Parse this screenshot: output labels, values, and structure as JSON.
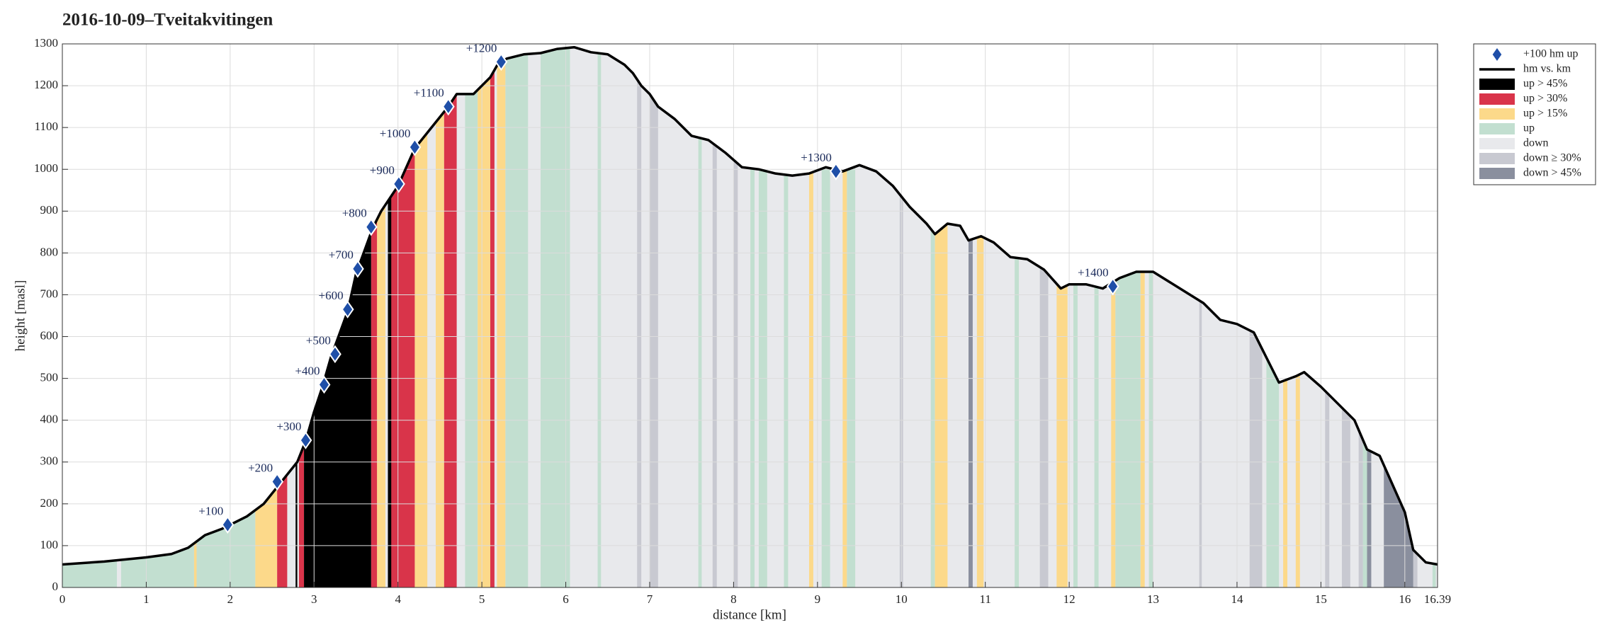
{
  "chart_data": {
    "type": "area",
    "title": "2016-10-09–Tveitakvitingen",
    "xlabel": "distance [km]",
    "ylabel": "height [masl]",
    "xlim": [
      0,
      16.39
    ],
    "ylim": [
      0,
      1300
    ],
    "xticks": [
      0,
      1,
      2,
      3,
      4,
      5,
      6,
      7,
      8,
      9,
      10,
      11,
      12,
      13,
      14,
      15,
      16,
      16.39
    ],
    "yticks": [
      0,
      100,
      200,
      300,
      400,
      500,
      600,
      700,
      800,
      900,
      1000,
      1100,
      1200,
      1300
    ],
    "grid": true,
    "legend": "right",
    "series": [
      {
        "name": "+100 hm up",
        "color": "#1f4fa8",
        "marker": "diamond",
        "x": [
          1.97,
          2.56,
          2.9,
          3.12,
          3.25,
          3.4,
          3.52,
          3.68,
          4.01,
          4.2,
          4.6,
          5.23,
          9.22,
          12.52
        ],
        "values": [
          150,
          253,
          352,
          485,
          558,
          665,
          762,
          862,
          965,
          1053,
          1150,
          1257,
          995,
          720
        ],
        "labels": [
          "+100",
          "+200",
          "+300",
          "+400",
          "+500",
          "+600",
          "+700",
          "+800",
          "+900",
          "+1000",
          "+1100",
          "+1200",
          "+1300",
          "+1400"
        ]
      },
      {
        "name": "hm vs. km",
        "color": "#000000",
        "x": [
          0,
          0.5,
          1,
          1.3,
          1.5,
          1.7,
          1.9,
          2.0,
          2.2,
          2.4,
          2.6,
          2.8,
          2.9,
          3.0,
          3.1,
          3.2,
          3.4,
          3.5,
          3.7,
          3.8,
          3.9,
          4.0,
          4.2,
          4.4,
          4.6,
          4.7,
          4.9,
          5.1,
          5.2,
          5.3,
          5.5,
          5.7,
          5.9,
          6.1,
          6.3,
          6.5,
          6.7,
          6.8,
          6.9,
          7.0,
          7.1,
          7.3,
          7.5,
          7.7,
          7.9,
          8.1,
          8.3,
          8.5,
          8.7,
          8.9,
          9.1,
          9.3,
          9.5,
          9.7,
          9.9,
          10.1,
          10.3,
          10.4,
          10.55,
          10.7,
          10.8,
          10.95,
          11.1,
          11.3,
          11.5,
          11.7,
          11.9,
          12.0,
          12.2,
          12.4,
          12.6,
          12.8,
          13.0,
          13.2,
          13.4,
          13.6,
          13.8,
          14.0,
          14.2,
          14.4,
          14.5,
          14.7,
          14.8,
          15.0,
          15.2,
          15.4,
          15.55,
          15.7,
          15.8,
          16.0,
          16.1,
          16.25,
          16.39
        ],
        "values": [
          55,
          62,
          72,
          80,
          95,
          125,
          140,
          150,
          170,
          200,
          250,
          300,
          350,
          420,
          480,
          550,
          660,
          750,
          860,
          900,
          930,
          960,
          1050,
          1100,
          1150,
          1180,
          1180,
          1220,
          1255,
          1265,
          1275,
          1278,
          1288,
          1292,
          1280,
          1275,
          1250,
          1230,
          1200,
          1180,
          1150,
          1120,
          1080,
          1070,
          1040,
          1005,
          1000,
          990,
          985,
          990,
          1005,
          995,
          1010,
          995,
          960,
          910,
          870,
          845,
          870,
          865,
          830,
          840,
          825,
          790,
          785,
          760,
          715,
          725,
          725,
          715,
          740,
          755,
          755,
          730,
          705,
          680,
          640,
          630,
          610,
          530,
          490,
          505,
          515,
          480,
          440,
          400,
          330,
          315,
          270,
          180,
          90,
          60,
          55
        ]
      }
    ],
    "bands": [
      {
        "name": "up > 45%",
        "color": "#000000",
        "spans": [
          [
            2.78,
            2.8
          ],
          [
            2.88,
            3.68
          ],
          [
            3.88,
            3.92
          ]
        ]
      },
      {
        "name": "up > 30%",
        "color": "#d9344a",
        "spans": [
          [
            2.56,
            2.68
          ],
          [
            2.82,
            2.88
          ],
          [
            3.68,
            3.75
          ],
          [
            3.9,
            4.2
          ],
          [
            4.55,
            4.7
          ],
          [
            5.1,
            5.15
          ]
        ]
      },
      {
        "name": "up > 15%",
        "color": "#fcd98a",
        "spans": [
          [
            1.57,
            1.6
          ],
          [
            2.3,
            2.56
          ],
          [
            3.75,
            3.85
          ],
          [
            4.2,
            4.35
          ],
          [
            4.45,
            4.55
          ],
          [
            4.95,
            5.1
          ],
          [
            5.18,
            5.28
          ],
          [
            8.9,
            8.95
          ],
          [
            9.3,
            9.35
          ],
          [
            10.4,
            10.55
          ],
          [
            10.9,
            10.98
          ],
          [
            11.85,
            11.98
          ],
          [
            12.5,
            12.55
          ],
          [
            12.85,
            12.9
          ],
          [
            14.55,
            14.6
          ],
          [
            14.7,
            14.75
          ]
        ]
      },
      {
        "name": "up",
        "color": "#c2dfd0",
        "spans": [
          [
            0,
            0.65
          ],
          [
            0.7,
            1.57
          ],
          [
            1.6,
            2.3
          ],
          [
            4.8,
            4.95
          ],
          [
            5.28,
            5.55
          ],
          [
            5.7,
            6.05
          ],
          [
            6.38,
            6.42
          ],
          [
            7.58,
            7.62
          ],
          [
            8.2,
            8.25
          ],
          [
            8.3,
            8.4
          ],
          [
            8.6,
            8.65
          ],
          [
            9.05,
            9.15
          ],
          [
            9.35,
            9.45
          ],
          [
            10.35,
            10.4
          ],
          [
            11.35,
            11.4
          ],
          [
            12.05,
            12.1
          ],
          [
            12.3,
            12.35
          ],
          [
            12.55,
            12.85
          ],
          [
            12.95,
            13.0
          ],
          [
            14.35,
            14.5
          ],
          [
            15.5,
            15.55
          ],
          [
            16.33,
            16.37
          ]
        ]
      },
      {
        "name": "down",
        "color": "#e8e9ec",
        "spans": [
          [
            0,
            16.39
          ]
        ]
      },
      {
        "name": "down ≥ 30%",
        "color": "#c8c9d1",
        "spans": [
          [
            6.85,
            6.9
          ],
          [
            7.0,
            7.1
          ],
          [
            7.75,
            7.8
          ],
          [
            8.0,
            8.05
          ],
          [
            9.98,
            10.02
          ],
          [
            11.65,
            11.75
          ],
          [
            13.55,
            13.58
          ],
          [
            14.15,
            14.3
          ],
          [
            15.05,
            15.1
          ],
          [
            15.25,
            15.35
          ],
          [
            15.45,
            15.5
          ],
          [
            16.1,
            16.15
          ]
        ]
      },
      {
        "name": "down > 45%",
        "color": "#8a8f9e",
        "spans": [
          [
            10.8,
            10.85
          ],
          [
            15.55,
            15.6
          ],
          [
            15.75,
            16.1
          ]
        ]
      }
    ]
  }
}
